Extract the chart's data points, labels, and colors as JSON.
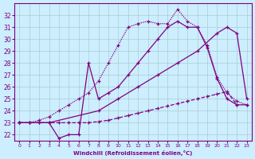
{
  "xlabel": "Windchill (Refroidissement éolien,°C)",
  "bg_color": "#cceeff",
  "line_color": "#800080",
  "xlim": [
    -0.5,
    23.5
  ],
  "ylim": [
    21.5,
    33.0
  ],
  "yticks": [
    22,
    23,
    24,
    25,
    26,
    27,
    28,
    29,
    30,
    31,
    32
  ],
  "xticks": [
    0,
    1,
    2,
    3,
    4,
    5,
    6,
    7,
    8,
    9,
    10,
    11,
    12,
    13,
    14,
    15,
    16,
    17,
    18,
    19,
    20,
    21,
    22,
    23
  ],
  "series": [
    {
      "x": [
        0,
        1,
        2,
        3,
        4,
        5,
        6,
        7,
        8,
        9,
        10,
        11,
        12,
        13,
        14,
        15,
        16,
        17,
        18,
        19,
        20,
        21,
        22,
        23
      ],
      "y": [
        23,
        23,
        23.2,
        23.5,
        24.0,
        24.5,
        25.0,
        25.5,
        26.5,
        28.0,
        29.5,
        31.0,
        31.3,
        31.5,
        31.3,
        31.3,
        32.5,
        31.5,
        31.0,
        29.5,
        26.8,
        25.5,
        24.8,
        24.5
      ],
      "style": "dotted",
      "marker": "+"
    },
    {
      "x": [
        0,
        3,
        8,
        10,
        12,
        14,
        16,
        18,
        20,
        21,
        22,
        23
      ],
      "y": [
        23,
        23,
        24.0,
        25.0,
        26.0,
        27.0,
        28.0,
        29.0,
        30.5,
        31.0,
        30.5,
        25.0
      ],
      "style": "-",
      "marker": "+"
    },
    {
      "x": [
        0,
        1,
        2,
        3,
        4,
        5,
        6,
        7,
        8,
        9,
        10,
        11,
        12,
        13,
        14,
        15,
        16,
        17,
        18,
        19,
        20,
        21,
        22,
        23
      ],
      "y": [
        23,
        23,
        23.0,
        23.0,
        21.7,
        22.0,
        22.0,
        28.0,
        25.0,
        25.5,
        26.0,
        27.0,
        28.0,
        29.0,
        30.0,
        31.0,
        31.5,
        31.0,
        31.0,
        29.3,
        26.7,
        25.0,
        24.5,
        24.5
      ],
      "style": "-",
      "marker": "+"
    },
    {
      "x": [
        0,
        1,
        2,
        3,
        4,
        5,
        6,
        7,
        8,
        9,
        10,
        11,
        12,
        13,
        14,
        15,
        16,
        17,
        18,
        19,
        20,
        21,
        22
      ],
      "y": [
        23,
        23,
        23,
        23,
        23,
        23,
        23,
        23,
        23.1,
        23.2,
        23.4,
        23.6,
        23.8,
        24.0,
        24.2,
        24.4,
        24.6,
        24.8,
        25.0,
        25.2,
        25.4,
        25.6,
        24.5
      ],
      "style": "--",
      "marker": "+"
    }
  ]
}
